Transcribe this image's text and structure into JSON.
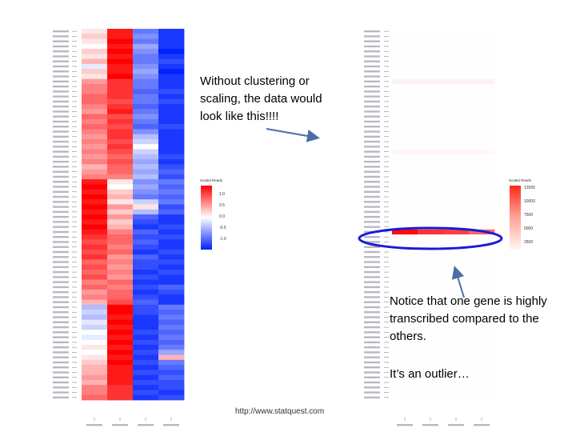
{
  "texts": {
    "callout_no_scaling": "Without clustering or scaling, the data would look like this!!!!",
    "callout_outlier_1": "Notice that one gene is highly transcribed compared to the others.",
    "callout_outlier_2": "It’s an outlier…",
    "footer_url": "http://www.statquest.com"
  },
  "colors": {
    "high": "#ff0000",
    "mid": "#ffffff",
    "low": "#0022ff",
    "outlier_ring": "#1a1ad8",
    "arrow": "#4a6fa5"
  },
  "left_heatmap": {
    "legend_title": "Scaled Reads",
    "legend_ticks": [
      "1.0",
      "0.5",
      "0.0",
      "-0.5",
      "-1.0"
    ],
    "row_values": [
      [
        0.1,
        0.9,
        -0.6,
        -0.9
      ],
      [
        0.2,
        0.9,
        -0.5,
        -0.9
      ],
      [
        0.1,
        1.0,
        -0.6,
        -0.9
      ],
      [
        0.0,
        0.9,
        -0.4,
        -0.9
      ],
      [
        0.2,
        1.0,
        -0.5,
        -1.0
      ],
      [
        0.1,
        0.9,
        -0.6,
        -0.9
      ],
      [
        0.3,
        1.0,
        -0.6,
        -0.8
      ],
      [
        -0.1,
        0.9,
        -0.5,
        -0.9
      ],
      [
        0.2,
        0.9,
        -0.4,
        -1.0
      ],
      [
        0.1,
        1.0,
        -0.5,
        -0.9
      ],
      [
        0.4,
        0.8,
        -0.6,
        -0.9
      ],
      [
        0.5,
        0.8,
        -0.6,
        -0.9
      ],
      [
        0.5,
        0.8,
        -0.7,
        -0.8
      ],
      [
        0.6,
        0.8,
        -0.6,
        -0.9
      ],
      [
        0.6,
        0.7,
        -0.6,
        -0.8
      ],
      [
        0.5,
        0.8,
        -0.7,
        -0.9
      ],
      [
        0.4,
        0.9,
        -0.6,
        -0.9
      ],
      [
        0.6,
        0.7,
        -0.5,
        -0.9
      ],
      [
        0.5,
        0.8,
        -0.6,
        -0.9
      ],
      [
        0.6,
        0.7,
        -0.7,
        -0.8
      ],
      [
        0.5,
        0.8,
        -0.5,
        -0.9
      ],
      [
        0.4,
        0.8,
        -0.3,
        -0.9
      ],
      [
        0.5,
        0.7,
        -0.2,
        -0.9
      ],
      [
        0.4,
        0.8,
        0.0,
        -0.9
      ],
      [
        0.5,
        0.7,
        -0.2,
        -0.9
      ],
      [
        0.4,
        0.6,
        -0.3,
        -0.8
      ],
      [
        0.5,
        0.7,
        -0.4,
        -0.9
      ],
      [
        0.3,
        0.6,
        -0.3,
        -0.8
      ],
      [
        0.4,
        0.6,
        -0.4,
        -0.7
      ],
      [
        0.5,
        0.5,
        -0.3,
        -0.8
      ],
      [
        0.9,
        0.1,
        -0.5,
        -0.6
      ],
      [
        1.0,
        0.0,
        -0.4,
        -0.7
      ],
      [
        0.9,
        0.2,
        -0.5,
        -0.6
      ],
      [
        1.0,
        0.3,
        -0.6,
        -0.7
      ],
      [
        0.9,
        0.1,
        -0.2,
        -0.6
      ],
      [
        1.0,
        0.4,
        0.1,
        -0.8
      ],
      [
        0.9,
        0.2,
        -0.3,
        -0.7
      ],
      [
        1.0,
        0.4,
        -0.7,
        -0.9
      ],
      [
        0.9,
        0.2,
        -0.8,
        -0.9
      ],
      [
        1.0,
        0.3,
        -0.9,
        -0.8
      ],
      [
        0.9,
        0.5,
        -0.7,
        -0.9
      ],
      [
        0.8,
        0.6,
        -0.8,
        -0.8
      ],
      [
        0.7,
        0.6,
        -0.7,
        -0.9
      ],
      [
        0.8,
        0.5,
        -0.8,
        -0.9
      ],
      [
        0.7,
        0.6,
        -0.9,
        -0.8
      ],
      [
        0.8,
        0.4,
        -0.7,
        -0.9
      ],
      [
        0.6,
        0.5,
        -0.8,
        -0.8
      ],
      [
        0.7,
        0.4,
        -0.8,
        -0.9
      ],
      [
        0.6,
        0.5,
        -0.9,
        -0.8
      ],
      [
        0.7,
        0.4,
        -0.8,
        -0.9
      ],
      [
        0.5,
        0.6,
        -0.9,
        -0.9
      ],
      [
        0.6,
        0.5,
        -0.8,
        -0.7
      ],
      [
        0.4,
        0.6,
        -0.9,
        -0.8
      ],
      [
        0.5,
        0.6,
        -0.8,
        -0.9
      ],
      [
        0.3,
        0.7,
        -0.7,
        -0.9
      ],
      [
        -0.3,
        1.0,
        -0.8,
        -0.6
      ],
      [
        -0.2,
        1.0,
        -0.8,
        -0.7
      ],
      [
        -0.3,
        0.9,
        -0.9,
        -0.6
      ],
      [
        -0.1,
        1.0,
        -0.9,
        -0.7
      ],
      [
        -0.2,
        0.9,
        -0.9,
        -0.6
      ],
      [
        0.0,
        1.0,
        -0.8,
        -0.7
      ],
      [
        -0.1,
        0.9,
        -0.9,
        -0.6
      ],
      [
        0.0,
        1.0,
        -0.8,
        -0.7
      ],
      [
        0.1,
        0.9,
        -0.9,
        -0.6
      ],
      [
        0.0,
        1.0,
        -0.8,
        -0.4
      ],
      [
        0.1,
        0.9,
        -0.9,
        0.3
      ],
      [
        0.2,
        1.0,
        -0.8,
        -0.6
      ],
      [
        0.3,
        0.9,
        -0.9,
        -0.7
      ],
      [
        0.3,
        0.9,
        -0.8,
        -0.8
      ],
      [
        0.4,
        0.9,
        -0.9,
        -0.7
      ],
      [
        0.3,
        0.9,
        -0.8,
        -0.8
      ],
      [
        0.5,
        0.8,
        -0.9,
        -0.8
      ],
      [
        0.5,
        0.8,
        -0.8,
        -0.9
      ],
      [
        0.6,
        0.8,
        -0.9,
        -0.8
      ]
    ]
  },
  "right_heatmap": {
    "legend_title": "Scaled Reads",
    "legend_ticks": [
      "12500",
      "10000",
      "7500",
      "5000",
      "2500"
    ],
    "row_count": 74,
    "outlier_row_index": 40,
    "outlier_values": [
      0.95,
      0.8,
      0.75,
      0.6
    ],
    "faint_rows": [
      [
        10,
        0.05
      ],
      [
        24,
        0.03
      ]
    ]
  }
}
